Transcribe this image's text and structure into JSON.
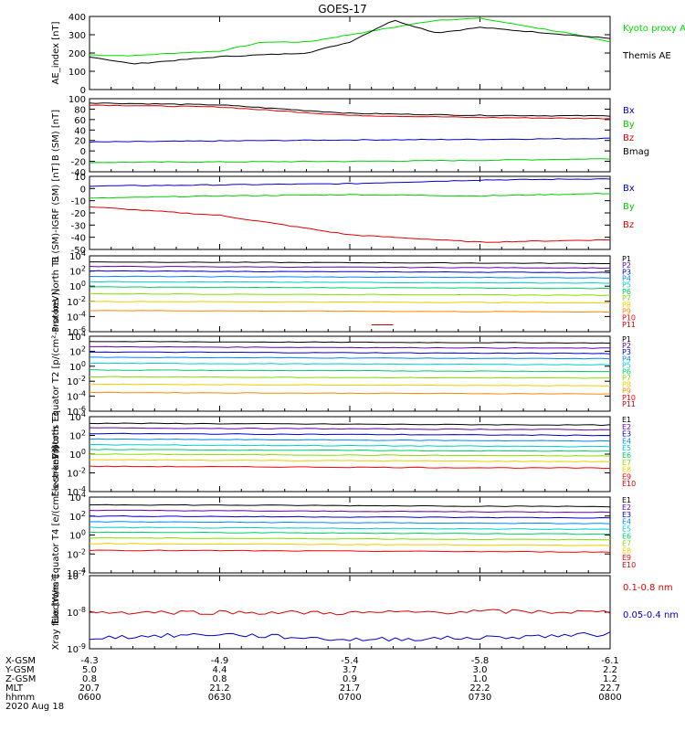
{
  "title": "GOES-17",
  "colors": {
    "frame": "#000000",
    "kyoto": "#00dd00",
    "themis": "#000000",
    "bx": "#0000cc",
    "by": "#00cc00",
    "bz": "#dd0000",
    "bmag": "#000000"
  },
  "footer": {
    "row_labels": [
      "X-GSM",
      "Y-GSM",
      "Z-GSM",
      "MLT",
      "hhmm"
    ],
    "columns": [
      [
        "-4.3",
        "5.0",
        "0.8",
        "20.7",
        "0600"
      ],
      [
        "-4.9",
        "4.4",
        "0.8",
        "21.2",
        "0630"
      ],
      [
        "-5.4",
        "3.7",
        "0.9",
        "21.7",
        "0700"
      ],
      [
        "-5.8",
        "3.0",
        "1.0",
        "22.2",
        "0730"
      ],
      [
        "-6.1",
        "2.2",
        "1.2",
        "22.7",
        "0800"
      ]
    ],
    "date": "2020 Aug 18"
  },
  "chart_data": [
    {
      "type": "line",
      "ylabel": "AE_index [nT]",
      "ylim": [
        0,
        400
      ],
      "yticks": [
        "0",
        "100",
        "200",
        "300",
        "400"
      ],
      "x": [
        "0600",
        "0610",
        "0620",
        "0630",
        "0640",
        "0650",
        "0700",
        "0710",
        "0720",
        "0730",
        "0740",
        "0750",
        "0800"
      ],
      "series": [
        {
          "name": "Kyoto proxy AE",
          "color": "#00dd00",
          "values": [
            190,
            185,
            200,
            210,
            260,
            260,
            300,
            340,
            380,
            390,
            350,
            310,
            260
          ]
        },
        {
          "name": "Themis AE",
          "color": "#000000",
          "values": [
            180,
            140,
            160,
            180,
            190,
            200,
            260,
            380,
            310,
            340,
            320,
            300,
            280
          ]
        }
      ]
    },
    {
      "type": "line",
      "ylabel": "B (SM) [nT]",
      "ylim": [
        -40,
        100
      ],
      "yticks": [
        "-40",
        "-20",
        "0",
        "20",
        "40",
        "60",
        "80",
        "100"
      ],
      "x": [
        "0600",
        "0630",
        "0700",
        "0730",
        "0800"
      ],
      "series": [
        {
          "name": "Bx",
          "color": "#0000cc",
          "values": [
            17,
            19,
            21,
            22,
            24
          ]
        },
        {
          "name": "By",
          "color": "#00cc00",
          "values": [
            -22,
            -21,
            -20,
            -18,
            -15
          ]
        },
        {
          "name": "Bz",
          "color": "#dd0000",
          "values": [
            88,
            84,
            68,
            64,
            62
          ]
        },
        {
          "name": "Bmag",
          "color": "#000000",
          "values": [
            92,
            88,
            72,
            68,
            67
          ]
        }
      ]
    },
    {
      "type": "line",
      "ylabel": "B (SM)-IGRF (SM) [nT]",
      "ylim": [
        -50,
        10
      ],
      "yticks": [
        "-50",
        "-40",
        "-30",
        "-20",
        "-10",
        "0",
        "10"
      ],
      "x": [
        "0600",
        "0630",
        "0700",
        "0730",
        "0800"
      ],
      "series": [
        {
          "name": "Bx",
          "color": "#0000cc",
          "values": [
            2,
            3,
            4,
            7,
            8
          ]
        },
        {
          "name": "By",
          "color": "#00cc00",
          "values": [
            -8,
            -6,
            -5,
            -6,
            -4
          ]
        },
        {
          "name": "Bz",
          "color": "#dd0000",
          "values": [
            -15,
            -22,
            -38,
            -44,
            -42
          ]
        }
      ]
    },
    {
      "type": "line",
      "ylabel": "Protons North T1",
      "scale": "log",
      "ylim_exp": [
        -6,
        4
      ],
      "yticks": [
        "10^-6",
        "10^-4",
        "10^-2",
        "10^0",
        "10^2",
        "10^4"
      ],
      "legend": [
        "P1",
        "P2",
        "P3",
        "P4",
        "P5",
        "P6",
        "P7",
        "P8",
        "P9",
        "P10",
        "P11"
      ],
      "legend_colors": [
        "#000000",
        "#6600aa",
        "#0000cc",
        "#0088ff",
        "#00cccc",
        "#00cc66",
        "#88dd00",
        "#eecc00",
        "#ff8800",
        "#ff0000",
        "#cc0000"
      ],
      "levels": [
        3.2,
        2.6,
        2.0,
        1.3,
        0.6,
        -0.1,
        -1.0,
        -2.0,
        -3.2
      ],
      "fragment": {
        "x": [
          "0705",
          "0710"
        ],
        "value": -5.1
      }
    },
    {
      "type": "line",
      "ylabel": "Protons Equator T2 [p/(cm²-s-sr-keV)]",
      "scale": "log",
      "ylim_exp": [
        -6,
        4
      ],
      "yticks": [
        "10^-6",
        "10^-4",
        "10^-2",
        "10^0",
        "10^2",
        "10^4"
      ],
      "legend": [
        "P1",
        "P2",
        "P3",
        "P4",
        "P5",
        "P6",
        "P7",
        "P8",
        "P9",
        "P10",
        "P11"
      ],
      "legend_colors": [
        "#000000",
        "#6600aa",
        "#0000cc",
        "#0088ff",
        "#00cccc",
        "#00cc66",
        "#88dd00",
        "#eecc00",
        "#ff8800",
        "#ff0000",
        "#cc0000"
      ],
      "levels": [
        3.3,
        2.6,
        1.9,
        1.2,
        0.4,
        -0.5,
        -1.4,
        -2.4,
        -3.5
      ]
    },
    {
      "type": "line",
      "ylabel": "Electrons North T3",
      "scale": "log",
      "ylim_exp": [
        -4,
        4
      ],
      "yticks": [
        "10^-4",
        "10^-2",
        "10^0",
        "10^2",
        "10^4"
      ],
      "legend": [
        "E1",
        "E2",
        "E3",
        "E4",
        "E5",
        "E6",
        "E7",
        "E8",
        "E9",
        "E10"
      ],
      "legend_colors": [
        "#000000",
        "#6600aa",
        "#0000cc",
        "#0088ff",
        "#00cccc",
        "#00cc66",
        "#88dd00",
        "#eecc00",
        "#ff0000",
        "#cc0000"
      ],
      "levels": [
        3.3,
        2.8,
        2.2,
        1.6,
        1.0,
        0.5,
        0.0,
        -0.6,
        -1.3
      ]
    },
    {
      "type": "line",
      "ylabel": "Electrons Equator T4 [e/(cm²-s-sr-keV)]",
      "scale": "log",
      "ylim_exp": [
        -4,
        4
      ],
      "yticks": [
        "10^-4",
        "10^-2",
        "10^0",
        "10^2",
        "10^4"
      ],
      "legend": [
        "E1",
        "E2",
        "E3",
        "E4",
        "E5",
        "E6",
        "E7",
        "E8",
        "E9",
        "E10"
      ],
      "legend_colors": [
        "#000000",
        "#6600aa",
        "#0000cc",
        "#0088ff",
        "#00cccc",
        "#00cc66",
        "#88dd00",
        "#eecc00",
        "#ff0000",
        "#cc0000"
      ],
      "levels": [
        3.2,
        2.6,
        2.0,
        1.4,
        0.8,
        0.3,
        -0.3,
        -0.9,
        -1.6
      ]
    },
    {
      "type": "line",
      "ylabel": "Xray flux [W/m²]",
      "scale": "log",
      "ylim_exp": [
        -9,
        -7
      ],
      "yticks": [
        "10^-9",
        "10^-8",
        "10^-7"
      ],
      "x": [
        "0600",
        "0630",
        "0700",
        "0730",
        "0800"
      ],
      "series": [
        {
          "name": "0.1-0.8 nm",
          "color": "#dd0000",
          "values": [
            -8.0,
            -8.0,
            -8.02,
            -7.98,
            -8.0
          ]
        },
        {
          "name": "0.05-0.4 nm",
          "color": "#0000cc",
          "values": [
            -8.7,
            -8.6,
            -8.75,
            -8.7,
            -8.6
          ]
        }
      ]
    }
  ]
}
